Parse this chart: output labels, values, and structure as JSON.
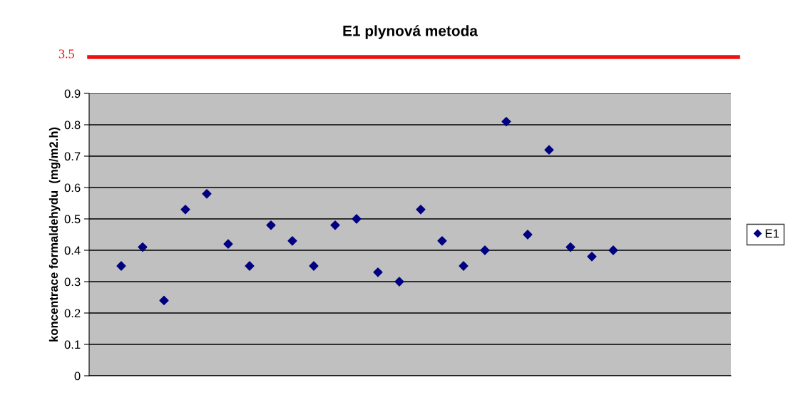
{
  "chart_data": {
    "type": "scatter",
    "title": "E1 plynová metoda",
    "ylabel": "koncentrace formaldehydu  (mg/m2.h)",
    "categories": [
      null,
      null,
      null,
      null,
      null,
      null,
      null,
      null,
      null,
      null,
      null,
      null,
      null,
      null,
      null,
      null,
      null,
      null,
      null,
      null,
      null,
      null,
      null,
      null,
      null,
      null,
      null,
      null,
      null,
      null
    ],
    "series": [
      {
        "name": "E1",
        "color": "#000080",
        "values": [
          null,
          0.35,
          0.41,
          0.24,
          0.53,
          0.58,
          0.42,
          0.35,
          0.48,
          0.43,
          0.35,
          0.48,
          0.5,
          0.33,
          0.3,
          0.53,
          0.43,
          0.35,
          0.4,
          0.81,
          0.45,
          0.72,
          0.41,
          0.38,
          0.4,
          null,
          null,
          null,
          null,
          null
        ]
      }
    ],
    "ylim": [
      0,
      0.9
    ],
    "yticks": [
      0,
      0.1,
      0.2,
      0.3,
      0.4,
      0.5,
      0.6,
      0.7,
      0.8,
      0.9
    ],
    "tick_labels": "y",
    "grid": "y",
    "legend": "right",
    "marker": "diamond",
    "annotations": [
      "3.5"
    ]
  }
}
